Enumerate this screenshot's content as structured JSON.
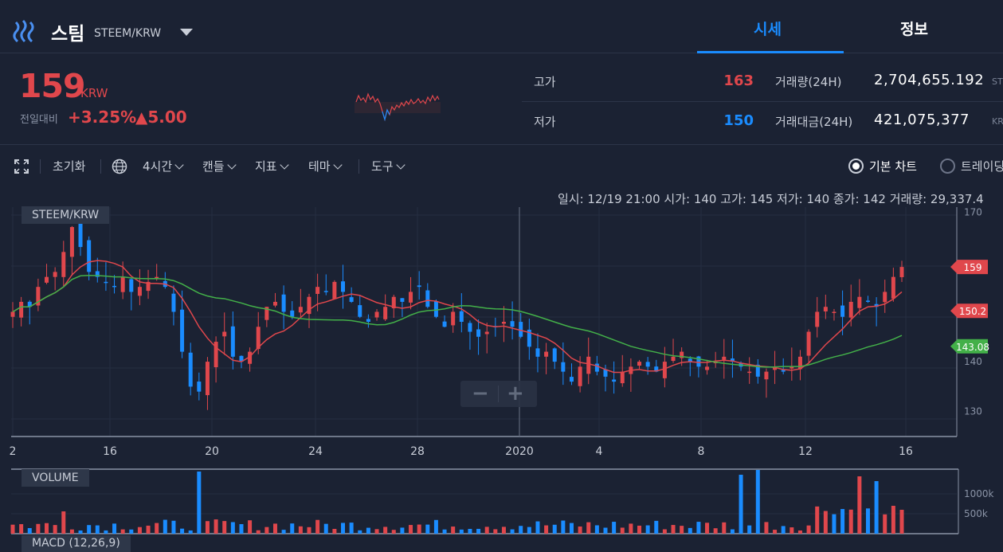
{
  "header": {
    "coin_name": "스팀",
    "pair": "STEEM/KRW",
    "tabs": [
      {
        "label": "시세",
        "active": true
      },
      {
        "label": "정보",
        "active": false
      }
    ]
  },
  "ticker": {
    "price": "159",
    "unit": "KRW",
    "change_label": "전일대비",
    "change_pct": "+3.25%",
    "change_abs": "▲5.00",
    "high_label": "고가",
    "high": "163",
    "low_label": "저가",
    "low": "150",
    "volume_label": "거래량(24H)",
    "volume": "2,704,655.192",
    "volume_unit": "STEEM",
    "value_label": "거래대금(24H)",
    "value": "421,075,377",
    "value_unit": "KRW"
  },
  "toolbar": {
    "reset": "초기화",
    "interval": "4시간",
    "candle": "캔들",
    "indicator": "지표",
    "theme": "테마",
    "tools": "도구",
    "basic_chart": "기본 차트",
    "trading_chart": "트레이딩뷰"
  },
  "info_line": "일시: 12/19 21:00 시가: 140 고가: 145 저가: 140 종가: 142 거래량: 29,337.4",
  "panes": {
    "main": "STEEM/KRW",
    "volume": "VOLUME",
    "macd": "MACD (12,26,9)"
  },
  "colors": {
    "up": "#e0474c",
    "down": "#1a8cff",
    "ma_fast": "#e0474c",
    "ma_slow": "#43b049",
    "bg": "#1b2233"
  },
  "chart_data": {
    "type": "candlestick",
    "x_ticks": [
      "2",
      "16",
      "20",
      "24",
      "28",
      "2020",
      "4",
      "8",
      "12",
      "16"
    ],
    "y_ticks": [
      170,
      140,
      130
    ],
    "ylim": [
      125,
      171
    ],
    "price_tags": [
      {
        "label": "159",
        "value": 159,
        "color": "#e0474c"
      },
      {
        "label": "150.2",
        "value": 150.2,
        "color": "#e0474c"
      },
      {
        "label": "143.08",
        "value": 143.08,
        "color": "#43b049"
      }
    ],
    "volume_ticks": [
      "1000k",
      "500k"
    ],
    "close_series": [
      150,
      152,
      151,
      155,
      157,
      158,
      162,
      167,
      163,
      158,
      157,
      156,
      155,
      157,
      154,
      155,
      156,
      157,
      155,
      150,
      142,
      135,
      134,
      140,
      144,
      146,
      141,
      140,
      142,
      147,
      151,
      152,
      150,
      149,
      151,
      153,
      155,
      154,
      156,
      154,
      152,
      149,
      148,
      150,
      151,
      153,
      152,
      154,
      155,
      151,
      149,
      147,
      150,
      148,
      146,
      145,
      146,
      147,
      148,
      147,
      145,
      143,
      141,
      142,
      140,
      138,
      136,
      139,
      141,
      138,
      137,
      136,
      138,
      139,
      140,
      139,
      138,
      140,
      141,
      142,
      140,
      139,
      139,
      140,
      141,
      140,
      139,
      138,
      137,
      138,
      139,
      138,
      139,
      141,
      146,
      150,
      151,
      150,
      149,
      152,
      153,
      152,
      151,
      154,
      157,
      159
    ]
  }
}
